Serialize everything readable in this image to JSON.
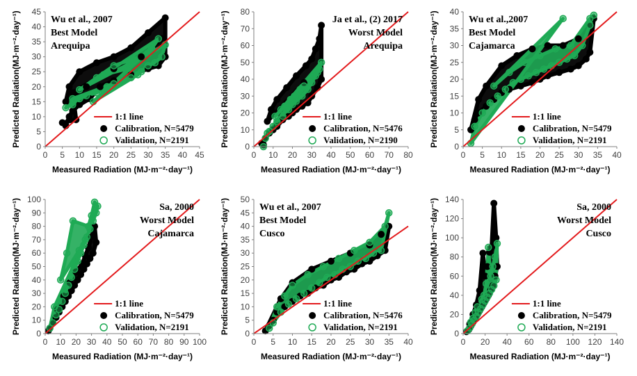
{
  "colors": {
    "calibration": "#000000",
    "validation": "#1faa55",
    "line": "#e31a1c",
    "axis": "#7f7f7f"
  },
  "chart_data": [
    {
      "type": "scatter",
      "title": [
        "Wu et al., 2007",
        "Best Model",
        "Arequipa"
      ],
      "title_align": "left",
      "xlim": [
        0,
        45
      ],
      "xticks": [
        0,
        5,
        10,
        15,
        20,
        25,
        30,
        35,
        40,
        45
      ],
      "ylim": [
        0,
        45
      ],
      "yticks": [
        0,
        5,
        10,
        15,
        20,
        25,
        30,
        35,
        40,
        45
      ],
      "xlabel": "Measured Radiation (MJ·m⁻²·day⁻¹)",
      "ylabel": "Predicted Radiation(MJ·m⁻²·day⁻¹)",
      "legend": [
        "1:1 line",
        "Calibration, N=5479",
        "Validation, N=2191"
      ],
      "series": [
        {
          "name": "Calibration",
          "x": [
            5,
            6,
            7,
            8,
            10,
            13,
            16,
            20,
            25,
            30,
            33,
            35,
            35,
            30,
            25,
            20,
            15,
            10,
            7,
            6,
            12,
            20,
            28,
            34,
            8,
            9
          ],
          "y": [
            8,
            7,
            10,
            12,
            14,
            16,
            20,
            22,
            24,
            26,
            27,
            30,
            43,
            38,
            33,
            30,
            28,
            25,
            20,
            15,
            20,
            26,
            30,
            36,
            18,
            9
          ]
        },
        {
          "name": "Validation",
          "x": [
            6,
            8,
            10,
            12,
            15,
            18,
            20,
            22,
            25,
            28,
            30,
            32,
            34,
            35,
            10,
            15,
            20,
            25,
            30,
            33,
            17,
            24,
            31,
            14,
            27,
            8
          ],
          "y": [
            13,
            14,
            16,
            17,
            18,
            20,
            21,
            22,
            23,
            25,
            27,
            28,
            30,
            34,
            19,
            23,
            27,
            29,
            31,
            36,
            24,
            26,
            33,
            15,
            24,
            16
          ]
        }
      ]
    },
    {
      "type": "scatter",
      "title": [
        "Ja et al., (2) 2017",
        "Worst Model",
        "Arequipa"
      ],
      "title_align": "right",
      "xlim": [
        0,
        80
      ],
      "xticks": [
        0,
        10,
        20,
        30,
        40,
        50,
        60,
        70,
        80
      ],
      "ylim": [
        0,
        80
      ],
      "yticks": [
        0,
        10,
        20,
        30,
        40,
        50,
        60,
        70,
        80
      ],
      "xlabel": "Measured Radiation (MJ·m⁻²·day⁻¹)",
      "ylabel": "Predicted Radiation(MJ·m⁻²·day⁻¹)",
      "legend": [
        "1:1 line",
        "Calibration, N=5476",
        "Validation, N=2190"
      ],
      "series": [
        {
          "name": "Calibration",
          "x": [
            4,
            5,
            6,
            8,
            10,
            12,
            15,
            18,
            20,
            22,
            25,
            28,
            30,
            33,
            35,
            35,
            34,
            32,
            30,
            27,
            22,
            17,
            12,
            9,
            7,
            26
          ],
          "y": [
            2,
            1,
            5,
            8,
            10,
            12,
            16,
            18,
            20,
            22,
            24,
            26,
            30,
            35,
            40,
            72,
            64,
            58,
            52,
            48,
            42,
            35,
            28,
            22,
            15,
            38
          ]
        },
        {
          "name": "Validation",
          "x": [
            5,
            6,
            8,
            10,
            12,
            15,
            18,
            20,
            22,
            25,
            28,
            30,
            32,
            34,
            35,
            14,
            19,
            24,
            29,
            33,
            11,
            16,
            21,
            26,
            31,
            7
          ],
          "y": [
            0,
            5,
            9,
            12,
            15,
            18,
            22,
            25,
            27,
            30,
            34,
            38,
            42,
            46,
            50,
            22,
            28,
            34,
            40,
            44,
            18,
            24,
            30,
            36,
            42,
            8
          ]
        }
      ]
    },
    {
      "type": "scatter",
      "title": [
        "Wu et al.,2007",
        "Best Model",
        "Cajamarca"
      ],
      "title_align": "left",
      "xlim": [
        0,
        40
      ],
      "xticks": [
        0,
        5,
        10,
        15,
        20,
        25,
        30,
        35,
        40
      ],
      "ylim": [
        0,
        40
      ],
      "yticks": [
        0,
        5,
        10,
        15,
        20,
        25,
        30,
        35,
        40
      ],
      "xlabel": "Measured Radiation (MJ·m⁻²·day⁻¹)",
      "ylabel": "Predicted Radiation(MJ·m⁻²·day⁻¹)",
      "legend": [
        "1:1 line",
        "Calibration, N=5479",
        "Validation, N=2191"
      ],
      "series": [
        {
          "name": "Calibration",
          "x": [
            2,
            3,
            4,
            6,
            8,
            10,
            12,
            15,
            18,
            20,
            22,
            25,
            28,
            30,
            32,
            33,
            34,
            33,
            30,
            26,
            22,
            18,
            14,
            10,
            6,
            4
          ],
          "y": [
            5,
            8,
            10,
            12,
            14,
            16,
            17,
            18,
            19,
            20,
            21,
            22,
            23,
            24,
            26,
            28,
            38,
            36,
            32,
            30,
            30,
            29,
            27,
            24,
            18,
            14
          ]
        },
        {
          "name": "Validation",
          "x": [
            2,
            3,
            5,
            7,
            9,
            11,
            13,
            15,
            17,
            19,
            21,
            23,
            25,
            27,
            29,
            31,
            33,
            34,
            33,
            28,
            24,
            20,
            16,
            12,
            8,
            26
          ],
          "y": [
            1,
            6,
            10,
            13,
            15,
            17,
            19,
            20,
            21,
            22,
            23,
            24,
            25,
            26,
            27,
            30,
            36,
            39,
            38,
            30,
            29,
            27,
            25,
            22,
            18,
            38
          ]
        }
      ]
    },
    {
      "type": "scatter",
      "title": [
        "Sa, 2000",
        "Worst Model",
        "Cajamarca"
      ],
      "title_align": "right",
      "xlim": [
        0,
        100
      ],
      "xticks": [
        0,
        10,
        20,
        30,
        40,
        50,
        60,
        70,
        80,
        90,
        100
      ],
      "ylim": [
        0,
        100
      ],
      "yticks": [
        0,
        10,
        20,
        30,
        40,
        50,
        60,
        70,
        80,
        90,
        100
      ],
      "xlabel": "Measured Radiation (MJ·m⁻²·day⁻¹)",
      "ylabel": "Predicted Radiation(MJ·m⁻²·day⁻¹)",
      "legend": [
        "1:1 line",
        "Calibration, N=5479",
        "Validation, N=2191"
      ],
      "series": [
        {
          "name": "Calibration",
          "x": [
            2,
            3,
            5,
            7,
            9,
            11,
            13,
            15,
            17,
            19,
            21,
            23,
            25,
            27,
            29,
            31,
            33,
            32,
            30,
            28,
            26,
            24,
            20,
            16,
            12,
            8
          ],
          "y": [
            2,
            4,
            8,
            12,
            16,
            20,
            24,
            28,
            32,
            36,
            40,
            44,
            48,
            52,
            56,
            60,
            68,
            80,
            72,
            64,
            58,
            52,
            46,
            38,
            28,
            18
          ]
        },
        {
          "name": "Validation",
          "x": [
            3,
            5,
            7,
            9,
            11,
            13,
            15,
            17,
            19,
            21,
            23,
            25,
            27,
            29,
            31,
            33,
            34,
            32,
            30,
            28,
            18,
            14,
            10,
            22,
            26,
            6
          ],
          "y": [
            4,
            8,
            14,
            18,
            24,
            30,
            36,
            42,
            48,
            54,
            60,
            66,
            72,
            78,
            84,
            90,
            95,
            98,
            88,
            80,
            84,
            60,
            40,
            62,
            70,
            20
          ]
        }
      ]
    },
    {
      "type": "scatter",
      "title": [
        "Wu et al., 2007",
        "Best Model",
        "Cusco"
      ],
      "title_align": "left",
      "xlim": [
        0,
        40
      ],
      "xticks": [
        0,
        5,
        10,
        15,
        20,
        25,
        30,
        35,
        40
      ],
      "ylim": [
        0,
        50
      ],
      "yticks": [
        0,
        5,
        10,
        15,
        20,
        25,
        30,
        35,
        40,
        45,
        50
      ],
      "xlabel": "Measured Radiation (MJ·m⁻²·day⁻¹)",
      "ylabel": "Predicted Radiation(MJ·m⁻²·day⁻¹)",
      "legend": [
        "1:1 line",
        "Calibration, N=5476",
        "Validation, N=2191"
      ],
      "series": [
        {
          "name": "Calibration",
          "x": [
            3,
            4,
            5,
            6,
            8,
            10,
            12,
            14,
            16,
            18,
            20,
            22,
            24,
            26,
            28,
            30,
            32,
            34,
            35,
            33,
            30,
            25,
            20,
            15,
            10,
            7
          ],
          "y": [
            1,
            3,
            5,
            8,
            10,
            12,
            14,
            15,
            17,
            18,
            20,
            21,
            23,
            24,
            26,
            27,
            29,
            31,
            40,
            37,
            33,
            30,
            27,
            24,
            19,
            13
          ]
        },
        {
          "name": "Validation",
          "x": [
            4,
            5,
            7,
            9,
            11,
            13,
            15,
            17,
            19,
            21,
            23,
            25,
            27,
            29,
            31,
            33,
            35,
            34,
            30,
            26,
            22,
            18,
            14,
            10,
            8,
            6
          ],
          "y": [
            2,
            4,
            8,
            11,
            13,
            15,
            17,
            19,
            21,
            22,
            24,
            25,
            27,
            28,
            30,
            31,
            45,
            40,
            34,
            31,
            28,
            25,
            22,
            18,
            14,
            10
          ]
        }
      ]
    },
    {
      "type": "scatter",
      "title": [
        "Sa, 2000",
        "Worst Model",
        "Cusco"
      ],
      "title_align": "right",
      "xlim": [
        0,
        140
      ],
      "xticks": [
        0,
        20,
        40,
        60,
        80,
        100,
        120,
        140
      ],
      "ylim": [
        0,
        140
      ],
      "yticks": [
        0,
        20,
        40,
        60,
        80,
        100,
        120,
        140
      ],
      "xlabel": "Measured Radiation (MJ·m⁻²·day⁻¹)",
      "ylabel": "Predicted Radiation(MJ·m⁻²·day⁻¹)",
      "legend": [
        "1:1 line",
        "Calibration, N=5479",
        "Validation, N=2191"
      ],
      "series": [
        {
          "name": "Calibration",
          "x": [
            3,
            5,
            7,
            9,
            11,
            13,
            15,
            17,
            19,
            21,
            23,
            25,
            27,
            29,
            31,
            30,
            28,
            26,
            24,
            22,
            20,
            18,
            15,
            12,
            9,
            6
          ],
          "y": [
            2,
            4,
            8,
            12,
            16,
            20,
            24,
            28,
            32,
            36,
            40,
            45,
            50,
            60,
            70,
            100,
            136,
            90,
            85,
            70,
            60,
            84,
            45,
            30,
            20,
            10
          ]
        },
        {
          "name": "Validation",
          "x": [
            4,
            6,
            8,
            10,
            12,
            14,
            16,
            18,
            20,
            22,
            24,
            26,
            28,
            30,
            31,
            29,
            27,
            25,
            23,
            21,
            19,
            17,
            13,
            11,
            9,
            7
          ],
          "y": [
            3,
            6,
            10,
            14,
            18,
            22,
            26,
            30,
            34,
            38,
            42,
            46,
            50,
            56,
            94,
            80,
            70,
            60,
            90,
            52,
            40,
            36,
            28,
            22,
            16,
            12
          ]
        }
      ]
    }
  ]
}
